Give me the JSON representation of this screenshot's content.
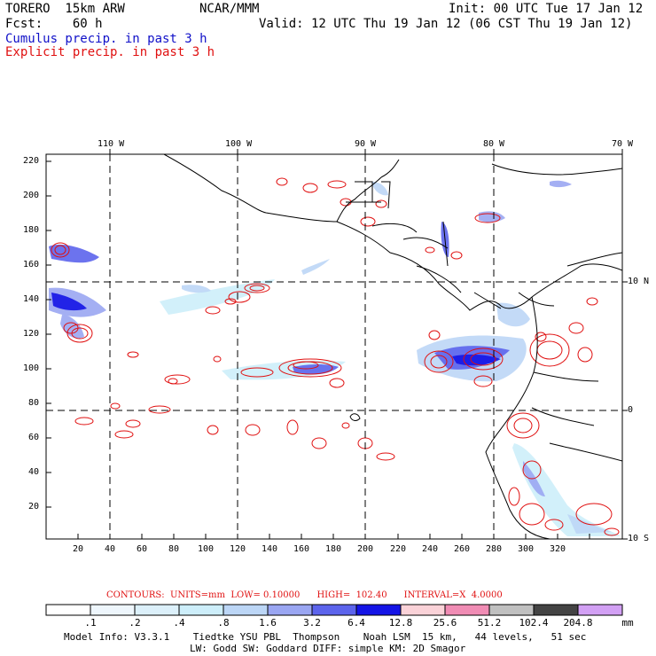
{
  "header": {
    "model": "TORERO  15km ARW",
    "org": "NCAR/MMM",
    "init": "Init: 00 UTC Tue 17 Jan 12",
    "fcst": "Fcst:    60 h",
    "valid": "Valid: 12 UTC Thu 19 Jan 12 (06 CST Thu 19 Jan 12)",
    "field1": "Cumulus precip. in past 3 h",
    "field2": "Explicit precip. in past 3 h"
  },
  "axes": {
    "x_ticks": [
      "20",
      "40",
      "60",
      "80",
      "100",
      "120",
      "140",
      "160",
      "180",
      "200",
      "220",
      "240",
      "260",
      "280",
      "300",
      "320"
    ],
    "y_ticks": [
      "20",
      "40",
      "60",
      "80",
      "100",
      "120",
      "140",
      "160",
      "180",
      "200",
      "220"
    ],
    "lon_labels": [
      "110 W",
      "100 W",
      "90 W",
      "80 W",
      "70 W"
    ],
    "lat_labels": [
      "10 N",
      "0",
      "10 S"
    ]
  },
  "contours": {
    "line": "CONTOURS:  UNITS=mm  LOW= 0.10000      HIGH=  102.40      INTERVAL=X  4.0000"
  },
  "colorbar": {
    "labels": [
      ".1",
      ".2",
      ".4",
      ".8",
      "1.6",
      "3.2",
      "6.4",
      "12.8",
      "25.6",
      "51.2",
      "102.4",
      "204.8"
    ],
    "unit": "mm",
    "colors": [
      "#ffffff",
      "#eef6fc",
      "#dcf0fa",
      "#cdeefa",
      "#bcd6f6",
      "#9aa6f2",
      "#5c64ec",
      "#1414e6",
      "#fad2d8",
      "#f08cb4",
      "#c0c0c0",
      "#444444",
      "#d2a0f4"
    ]
  },
  "model_info": {
    "line1": "Model Info: V3.3.1    Tiedtke YSU PBL  Thompson    Noah LSM  15 km,   44 levels,   51 sec",
    "line2": "LW: Godd SW: Goddard DIFF: simple KM: 2D Smagor"
  }
}
